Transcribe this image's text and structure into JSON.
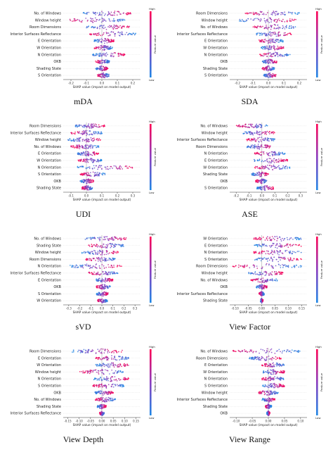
{
  "colors": {
    "low": "#1e88e5",
    "mid": "#8a3cbf",
    "high": "#ff0052",
    "zero_line": "#999999"
  },
  "labels": {
    "xlabel": "SHAP value (impact on model output)",
    "colorbar": "Feature value",
    "high": "High",
    "low": "Low"
  },
  "chart_data": [
    {
      "type": "beeswarm",
      "title": "mDA",
      "features": [
        "No. of Windows",
        "Window height",
        "Room Dimensions",
        "Interior Surfaces Reflectance",
        "E Orientation",
        "W Orientation",
        "N Orientation",
        "OKB",
        "Shading State",
        "S Orientation"
      ],
      "xlim": [
        -0.25,
        0.25
      ],
      "ticks": [
        "-0.2",
        "-0.1",
        "0.0",
        "0.1",
        "0.2"
      ],
      "tick_values": [
        -0.2,
        -0.1,
        0.0,
        0.1,
        0.2
      ],
      "spread": [
        [
          -0.12,
          0.2
        ],
        [
          -0.22,
          0.15
        ],
        [
          -0.1,
          0.18
        ],
        [
          -0.08,
          0.22
        ],
        [
          -0.05,
          0.08
        ],
        [
          -0.05,
          0.07
        ],
        [
          -0.06,
          0.15
        ],
        [
          -0.04,
          0.05
        ],
        [
          -0.04,
          0.04
        ],
        [
          -0.03,
          0.05
        ]
      ]
    },
    {
      "type": "beeswarm",
      "title": "SDA",
      "features": [
        "Room Dimensions",
        "Window height",
        "No. of Windows",
        "Interior Surfaces Reflectance",
        "E Orientation",
        "W Orientation",
        "N Orientation",
        "OKB",
        "Shading State",
        "S Orientation"
      ],
      "xlim": [
        -0.25,
        0.25
      ],
      "ticks": [
        "-0.2",
        "-0.1",
        "0.0",
        "0.1",
        "0.2"
      ],
      "tick_values": [
        -0.2,
        -0.1,
        0.0,
        0.1,
        0.2
      ],
      "spread": [
        [
          -0.15,
          0.2
        ],
        [
          -0.2,
          0.18
        ],
        [
          -0.1,
          0.18
        ],
        [
          -0.08,
          0.15
        ],
        [
          -0.06,
          0.1
        ],
        [
          -0.05,
          0.1
        ],
        [
          -0.06,
          0.14
        ],
        [
          -0.04,
          0.06
        ],
        [
          -0.04,
          0.04
        ],
        [
          -0.03,
          0.05
        ]
      ]
    },
    {
      "type": "beeswarm",
      "title": "UDI",
      "features": [
        "Room Dimensions",
        "Interior Surfaces Reflectance",
        "Window height",
        "No. of Windows",
        "E Orientation",
        "W Orientation",
        "N Orientation",
        "S Orientation",
        "OKB",
        "Shading State"
      ],
      "xlim": [
        -0.15,
        0.35
      ],
      "ticks": [
        "-0.1",
        "0.0",
        "0.1",
        "0.2",
        "0.3"
      ],
      "tick_values": [
        -0.1,
        0.0,
        0.1,
        0.2,
        0.3
      ],
      "spread": [
        [
          -0.08,
          0.12
        ],
        [
          -0.1,
          0.1
        ],
        [
          -0.12,
          0.1
        ],
        [
          -0.1,
          0.08
        ],
        [
          -0.06,
          0.08
        ],
        [
          -0.06,
          0.1
        ],
        [
          -0.06,
          0.32
        ],
        [
          -0.04,
          0.12
        ],
        [
          -0.04,
          0.05
        ],
        [
          -0.03,
          0.04
        ]
      ]
    },
    {
      "type": "beeswarm",
      "title": "ASE",
      "features": [
        "No. of Windows",
        "Window height",
        "Interior Surfaces Reflectance",
        "Room Dimensions",
        "N Orientation",
        "E Orientation",
        "W Orientation",
        "Shading State",
        "OKB",
        "S Orientation"
      ],
      "xlim": [
        -0.25,
        0.35
      ],
      "ticks": [
        "-0.2",
        "-0.1",
        "0.0",
        "0.1",
        "0.2",
        "0.3"
      ],
      "tick_values": [
        -0.2,
        -0.1,
        0.0,
        0.1,
        0.2,
        0.3
      ],
      "spread": [
        [
          -0.2,
          0.05
        ],
        [
          -0.15,
          0.1
        ],
        [
          -0.12,
          0.1
        ],
        [
          -0.12,
          0.08
        ],
        [
          -0.06,
          0.18
        ],
        [
          -0.06,
          0.2
        ],
        [
          -0.06,
          0.22
        ],
        [
          -0.08,
          0.05
        ],
        [
          -0.05,
          0.04
        ],
        [
          -0.04,
          0.1
        ]
      ]
    },
    {
      "type": "beeswarm",
      "title": "sVD",
      "features": [
        "No. of Windows",
        "Shading State",
        "Window height",
        "Room Dimensions",
        "N Orientation",
        "Interior Surfaces Reflectance",
        "E Orientation",
        "OKB",
        "S Orientation",
        "W Orientation"
      ],
      "xlim": [
        -0.35,
        0.35
      ],
      "ticks": [
        "-0.3",
        "-0.2",
        "-0.1",
        "0.0",
        "0.1",
        "0.2",
        "0.3"
      ],
      "tick_values": [
        -0.3,
        -0.2,
        -0.1,
        0.0,
        0.1,
        0.2,
        0.3
      ],
      "spread": [
        [
          -0.15,
          0.22
        ],
        [
          -0.12,
          0.2
        ],
        [
          -0.18,
          0.15
        ],
        [
          -0.15,
          0.12
        ],
        [
          -0.3,
          0.18
        ],
        [
          -0.12,
          0.15
        ],
        [
          -0.06,
          0.1
        ],
        [
          -0.05,
          0.08
        ],
        [
          -0.05,
          0.06
        ],
        [
          -0.04,
          0.05
        ]
      ]
    },
    {
      "type": "beeswarm",
      "title": "View Factor",
      "features": [
        "W Orientation",
        "E Orientation",
        "N Orientation",
        "S Orientation",
        "Room Dimensions",
        "Window height",
        "No. of Windows",
        "OKB",
        "Interior Surfaces Reflectance",
        "Shading State"
      ],
      "xlim": [
        -0.12,
        0.17
      ],
      "ticks": [
        "-0.10",
        "-0.05",
        "0.00",
        "0.05",
        "0.10",
        "0.15"
      ],
      "tick_values": [
        -0.1,
        -0.05,
        0,
        0.05,
        0.1,
        0.15
      ],
      "spread": [
        [
          -0.03,
          0.15
        ],
        [
          -0.03,
          0.15
        ],
        [
          -0.03,
          0.15
        ],
        [
          -0.03,
          0.15
        ],
        [
          -0.11,
          0.15
        ],
        [
          -0.05,
          0.08
        ],
        [
          -0.04,
          0.06
        ],
        [
          -0.02,
          0.02
        ],
        [
          -0.01,
          0.01
        ],
        [
          -0.005,
          0.005
        ]
      ]
    },
    {
      "type": "beeswarm",
      "title": "View Depth",
      "features": [
        "Room Dimensions",
        "E Orientation",
        "W Orientation",
        "Window height",
        "N Orientation",
        "S Orientation",
        "OKB",
        "No. of Windows",
        "Shading State",
        "Interior Surfaces Reflectance"
      ],
      "xlim": [
        -0.17,
        0.17
      ],
      "ticks": [
        "-0.15",
        "-0.10",
        "-0.05",
        "0.00",
        "0.05",
        "0.10",
        "0.15"
      ],
      "tick_values": [
        -0.15,
        -0.1,
        -0.05,
        0,
        0.05,
        0.1,
        0.15
      ],
      "spread": [
        [
          -0.14,
          0.1
        ],
        [
          -0.03,
          0.12
        ],
        [
          -0.03,
          0.12
        ],
        [
          -0.1,
          0.1
        ],
        [
          -0.04,
          0.12
        ],
        [
          -0.04,
          0.1
        ],
        [
          -0.03,
          0.05
        ],
        [
          -0.03,
          0.06
        ],
        [
          -0.02,
          0.02
        ],
        [
          -0.01,
          0.01
        ]
      ]
    },
    {
      "type": "beeswarm",
      "title": "View Range",
      "features": [
        "No. of Windows",
        "Room Dimensions",
        "E Orientation",
        "W Orientation",
        "N Orientation",
        "S Orientation",
        "Window height",
        "Interior Surfaces Reflectance",
        "Shading State",
        "OKB"
      ],
      "xlim": [
        -0.12,
        0.12
      ],
      "ticks": [
        "-0.10",
        "-0.05",
        "0.00",
        "0.05",
        "0.10"
      ],
      "tick_values": [
        -0.1,
        -0.05,
        0,
        0.05,
        0.1
      ],
      "spread": [
        [
          -0.11,
          0.1
        ],
        [
          -0.06,
          0.04
        ],
        [
          -0.02,
          0.05
        ],
        [
          -0.02,
          0.05
        ],
        [
          -0.02,
          0.05
        ],
        [
          -0.02,
          0.05
        ],
        [
          -0.03,
          0.03
        ],
        [
          -0.02,
          0.02
        ],
        [
          -0.01,
          0.01
        ],
        [
          -0.005,
          0.005
        ]
      ]
    }
  ]
}
